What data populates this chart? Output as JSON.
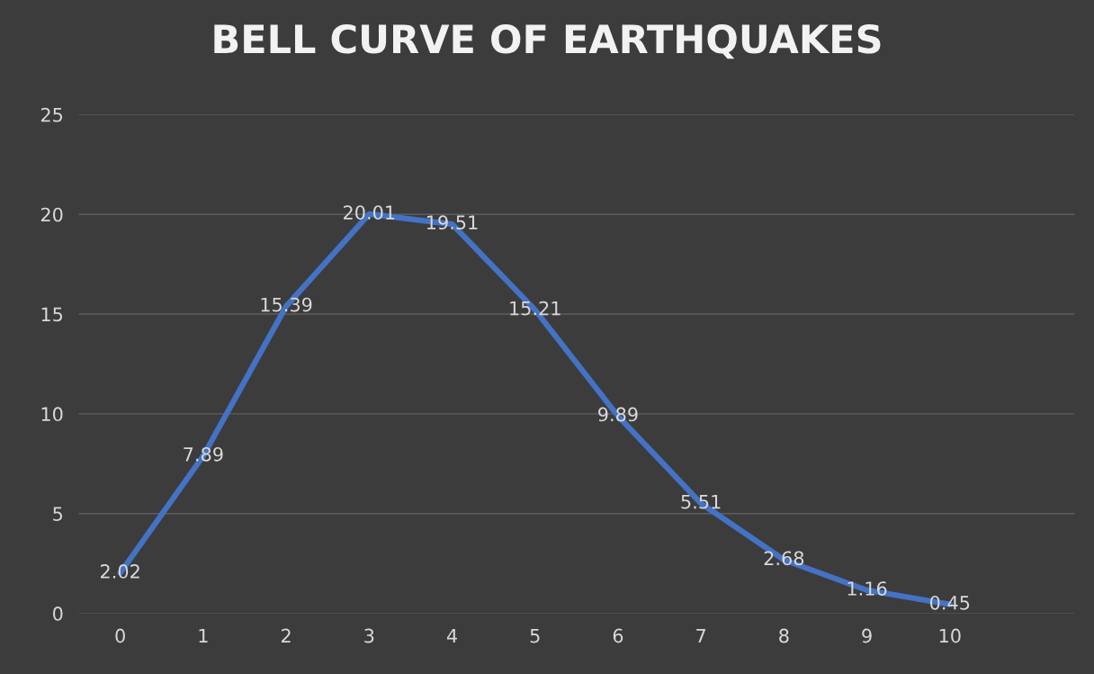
{
  "chart_data": {
    "type": "line",
    "title": "BELL CURVE OF EARTHQUAKES",
    "categories": [
      "0",
      "1",
      "2",
      "3",
      "4",
      "5",
      "6",
      "7",
      "8",
      "9",
      "10",
      null
    ],
    "series": [
      {
        "color": "#4472c4",
        "values": [
          2.02,
          7.89,
          15.39,
          20.01,
          19.51,
          15.21,
          9.89,
          5.51,
          2.68,
          1.16,
          0.45,
          null
        ]
      }
    ],
    "ylim": [
      0,
      25
    ],
    "yticks": [
      0,
      5,
      10,
      15,
      20,
      25
    ],
    "grid": "y",
    "data_labels": true,
    "marker": "none",
    "line_style": "solid"
  }
}
